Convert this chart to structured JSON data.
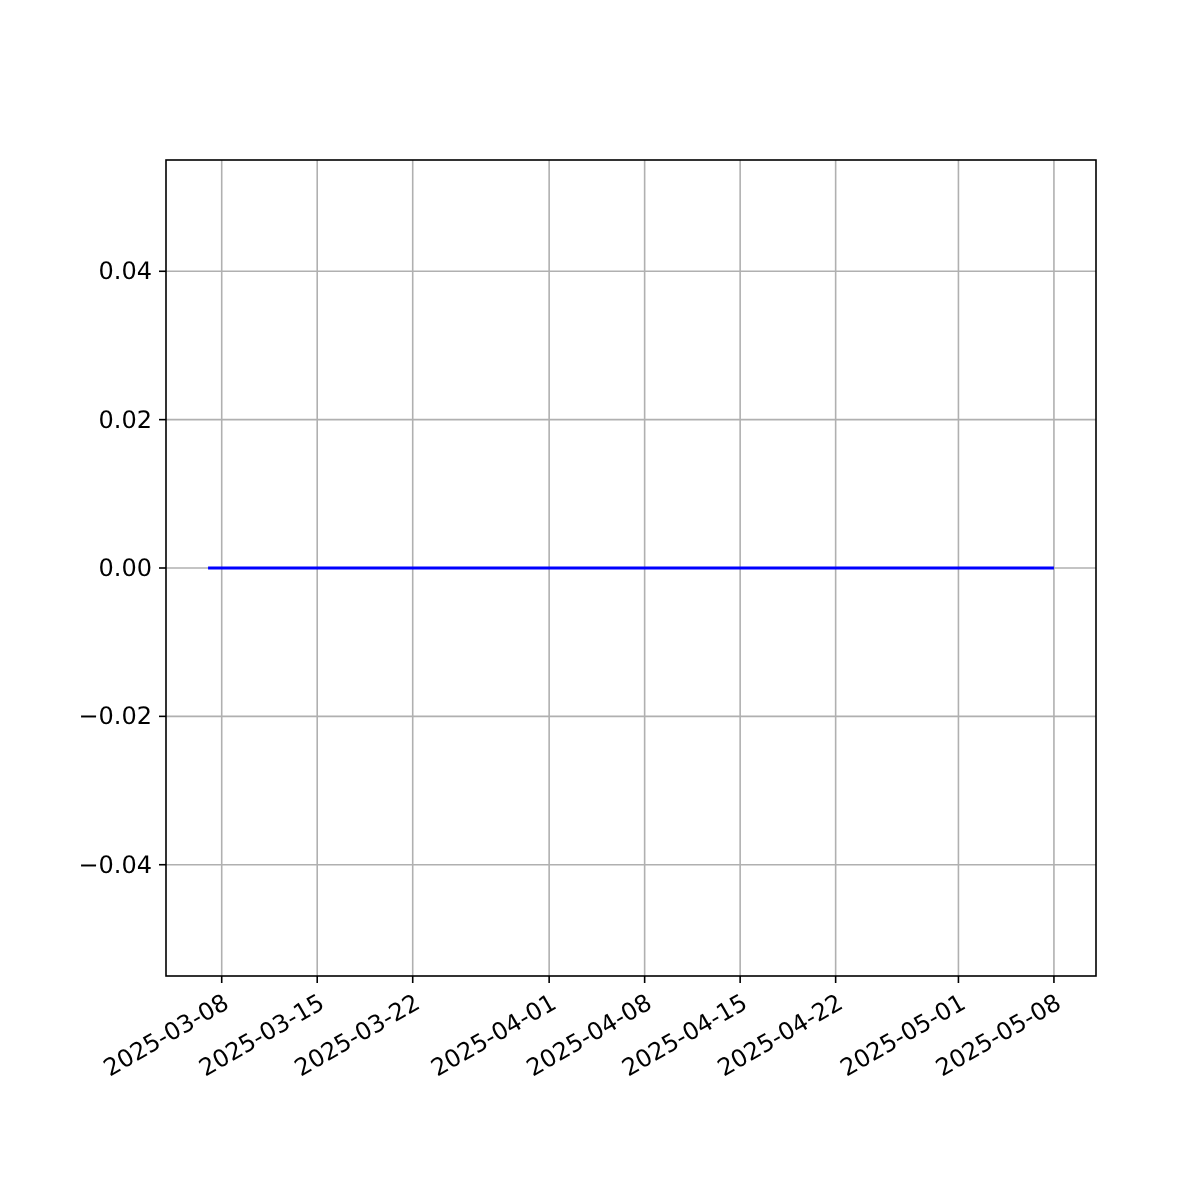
{
  "chart_data": {
    "type": "line",
    "x": [
      "2025-03-07",
      "2025-05-08"
    ],
    "series": [
      {
        "color": "#0000ff",
        "values": [
          0,
          0
        ]
      }
    ],
    "xlim": [
      "2025-03-03T22:00",
      "2025-05-11T02:00"
    ],
    "xticks": [
      {
        "value": "2025-03-08",
        "label": "2025-03-08"
      },
      {
        "value": "2025-03-15",
        "label": "2025-03-15"
      },
      {
        "value": "2025-03-22",
        "label": "2025-03-22"
      },
      {
        "value": "2025-04-01",
        "label": "2025-04-01"
      },
      {
        "value": "2025-04-08",
        "label": "2025-04-08"
      },
      {
        "value": "2025-04-15",
        "label": "2025-04-15"
      },
      {
        "value": "2025-04-22",
        "label": "2025-04-22"
      },
      {
        "value": "2025-05-01",
        "label": "2025-05-01"
      },
      {
        "value": "2025-05-08",
        "label": "2025-05-08"
      }
    ],
    "ylim": [
      -0.055,
      0.055
    ],
    "yticks": [
      {
        "value": -0.04,
        "label": "−0.04"
      },
      {
        "value": -0.02,
        "label": "−0.02"
      },
      {
        "value": 0,
        "label": "0.00"
      },
      {
        "value": 0.02,
        "label": "0.02"
      },
      {
        "value": 0.04,
        "label": "0.04"
      }
    ],
    "grid": true
  }
}
